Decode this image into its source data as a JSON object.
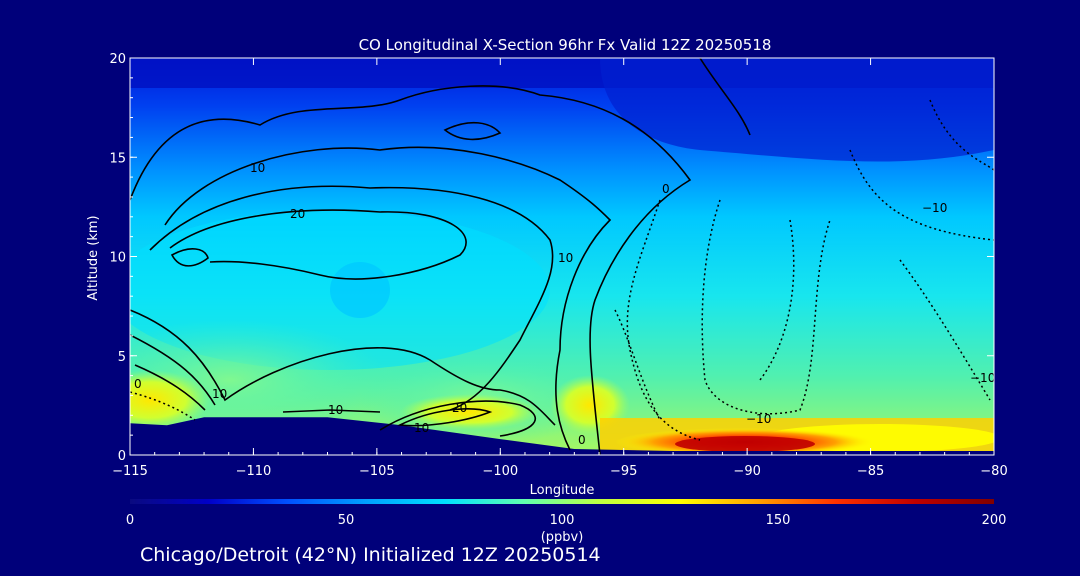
{
  "chart_data": {
    "type": "heatmap",
    "title": "CO Longitudinal X-Section 96hr  Fx Valid 12Z 20250518",
    "xlabel": "Longitude",
    "ylabel": "Altitude (km)",
    "x_ticks": [
      "−115",
      "−110",
      "−105",
      "−100",
      "−95",
      "−90",
      "−85",
      "−80"
    ],
    "y_ticks": [
      "0",
      "5",
      "10",
      "15",
      "20"
    ],
    "xlim": [
      -115,
      -80
    ],
    "ylim": [
      0,
      20
    ],
    "colorbar": {
      "label": "(ppbv)",
      "min": 0,
      "max": 200,
      "ticks": [
        "0",
        "50",
        "100",
        "150",
        "200"
      ],
      "colormap": [
        "#0a0a80",
        "#0000c8",
        "#0050ff",
        "#00a0ff",
        "#00e0ff",
        "#60ffb0",
        "#c0ff40",
        "#ffff00",
        "#ffa000",
        "#ff3000",
        "#c00000",
        "#800000"
      ]
    },
    "terrain_top_km": [
      {
        "lon": -115,
        "alt": 1.6
      },
      {
        "lon": -113.5,
        "alt": 1.5
      },
      {
        "lon": -112,
        "alt": 1.9
      },
      {
        "lon": -107,
        "alt": 1.9
      },
      {
        "lon": -104,
        "alt": 1.5
      },
      {
        "lon": -100,
        "alt": 0.8
      },
      {
        "lon": -97,
        "alt": 0.3
      },
      {
        "lon": -93,
        "alt": 0.2
      },
      {
        "lon": -80,
        "alt": 0.2
      }
    ],
    "contour_labels": [
      "10",
      "20",
      "10",
      "0",
      "−10",
      "20",
      "10",
      "10",
      "0",
      "0",
      "10",
      "−10",
      "−10"
    ],
    "surface_maximum": {
      "lon": -90,
      "alt": 0.5,
      "value_ppbv": 190
    }
  },
  "footer": "Chicago/Detroit (42°N) Initialized 12Z 20250514"
}
